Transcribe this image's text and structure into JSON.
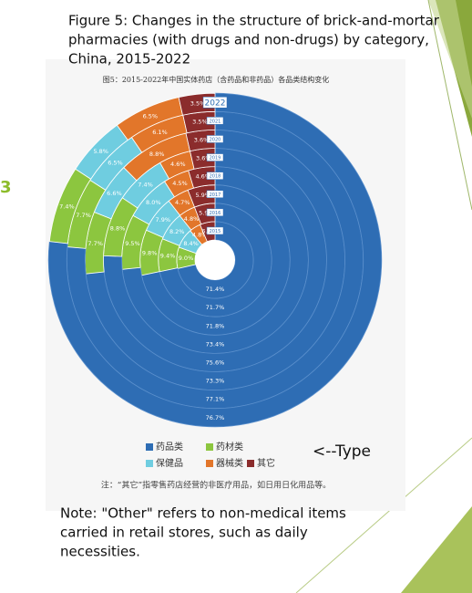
{
  "slide": {
    "side_number": "3",
    "title_lines": [
      "Figure 5: Changes in the structure of brick-and-mortar",
      "pharmacies (with drugs and non-drugs) by category,",
      "China, 2015-2022"
    ],
    "pointer": "<--Type",
    "note_lines": [
      "Note: \"Other\" refers to non-medical items",
      "carried in retail stores, such as daily",
      "necessities."
    ]
  },
  "chart_data": {
    "type": "radial_bar",
    "title": "图5：2015-2022年中国实体药店（含药品和非药品）各品类结构变化",
    "categories": [
      "2015",
      "2016",
      "2017",
      "2018",
      "2019",
      "2020",
      "2021",
      "2022"
    ],
    "series": [
      {
        "name": "药品类",
        "color": "#2e6db4",
        "values": [
          71.4,
          71.7,
          71.8,
          73.4,
          75.6,
          73.3,
          77.1,
          76.7
        ],
        "value_labels": [
          "71.4%",
          "71.7%",
          "71.8%",
          "73.4%",
          "75.6%",
          "73.3%",
          "77.1%",
          "76.7%"
        ]
      },
      {
        "name": "药材类",
        "color": "#8cc63f",
        "values": [
          9.0,
          9.4,
          9.8,
          9.5,
          8.8,
          7.7,
          7.7,
          7.4
        ],
        "value_labels": [
          "9.0%",
          "9.4%",
          "9.8%",
          "9.5%",
          "8.8%",
          "7.7%",
          "7.7%",
          "7.4%"
        ]
      },
      {
        "name": "保健品",
        "color": "#6fcde0",
        "values": [
          8.4,
          8.2,
          7.9,
          8.0,
          7.4,
          6.6,
          6.5,
          5.8
        ],
        "value_labels": [
          "8.4%",
          "8.2%",
          "7.9%",
          "8.0%",
          "7.4%",
          "6.6%",
          "6.5%",
          "5.8%"
        ]
      },
      {
        "name": "器械类",
        "color": "#e2762a",
        "values": [
          4.8,
          4.8,
          4.7,
          4.5,
          4.6,
          8.8,
          6.1,
          6.5
        ],
        "value_labels": [
          "4.8%",
          "4.8%",
          "4.7%",
          "4.5%",
          "4.6%",
          "8.8%",
          "6.1%",
          "6.5%"
        ]
      },
      {
        "name": "其它",
        "color": "#8b2c2c",
        "values": [
          6.4,
          5.9,
          5.9,
          4.6,
          3.6,
          3.6,
          3.5,
          3.5
        ],
        "value_labels": [
          "6.4%",
          "5.9%",
          "5.9%",
          "4.6%",
          "3.6%",
          "3.6%",
          "3.5%",
          "3.5%"
        ]
      }
    ],
    "footnote": "注：“其它”指零售药店经营的非医疗用品，如日用日化用品等。"
  }
}
